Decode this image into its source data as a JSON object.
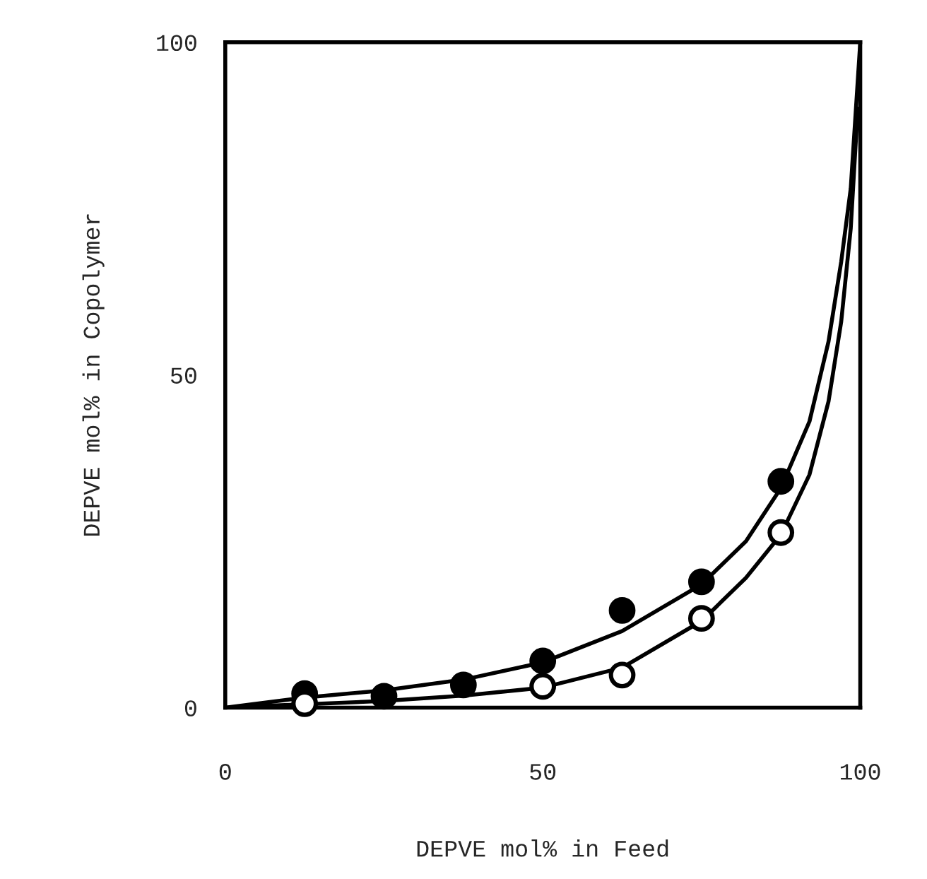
{
  "chart_data": {
    "type": "scatter",
    "xlabel": "DEPVE mol% in Feed",
    "ylabel": "DEPVE mol% in Copolymer",
    "xlim": [
      0,
      100
    ],
    "ylim": [
      0,
      100
    ],
    "xticks": [
      0,
      50,
      100
    ],
    "yticks": [
      0,
      50,
      100
    ],
    "grid": false,
    "legend": false,
    "series": [
      {
        "marker": "circle",
        "color": "#000000",
        "x": [
          12.5,
          25,
          37.5,
          50,
          62.5,
          75,
          87.5
        ],
        "values": [
          2.1,
          1.7,
          3.4,
          7,
          14.6,
          18.9,
          34
        ]
      },
      {
        "marker": "circle",
        "color": "#ffffff",
        "x": [
          12.5,
          50,
          62.5,
          75,
          87.5
        ],
        "values": [
          0.6,
          3.2,
          4.9,
          13.4,
          26.3
        ]
      },
      {
        "type": "line",
        "color": "#000000",
        "x": [
          0,
          12.5,
          25,
          37.5,
          50,
          62.5,
          75,
          82,
          87.5,
          92,
          95,
          97,
          98.5,
          100
        ],
        "values": [
          0,
          1.5,
          2.6,
          4.2,
          6.8,
          11.5,
          18.5,
          25,
          33,
          43,
          55,
          67,
          78,
          100
        ]
      },
      {
        "type": "line",
        "color": "#000000",
        "x": [
          4,
          12.5,
          25,
          37.5,
          50,
          62.5,
          75,
          82,
          87.5,
          92,
          95,
          97,
          98.5,
          99.6
        ],
        "values": [
          0.2,
          0.5,
          1,
          1.8,
          3,
          6,
          13,
          19.5,
          26,
          35,
          46,
          58,
          72,
          90
        ]
      }
    ]
  }
}
